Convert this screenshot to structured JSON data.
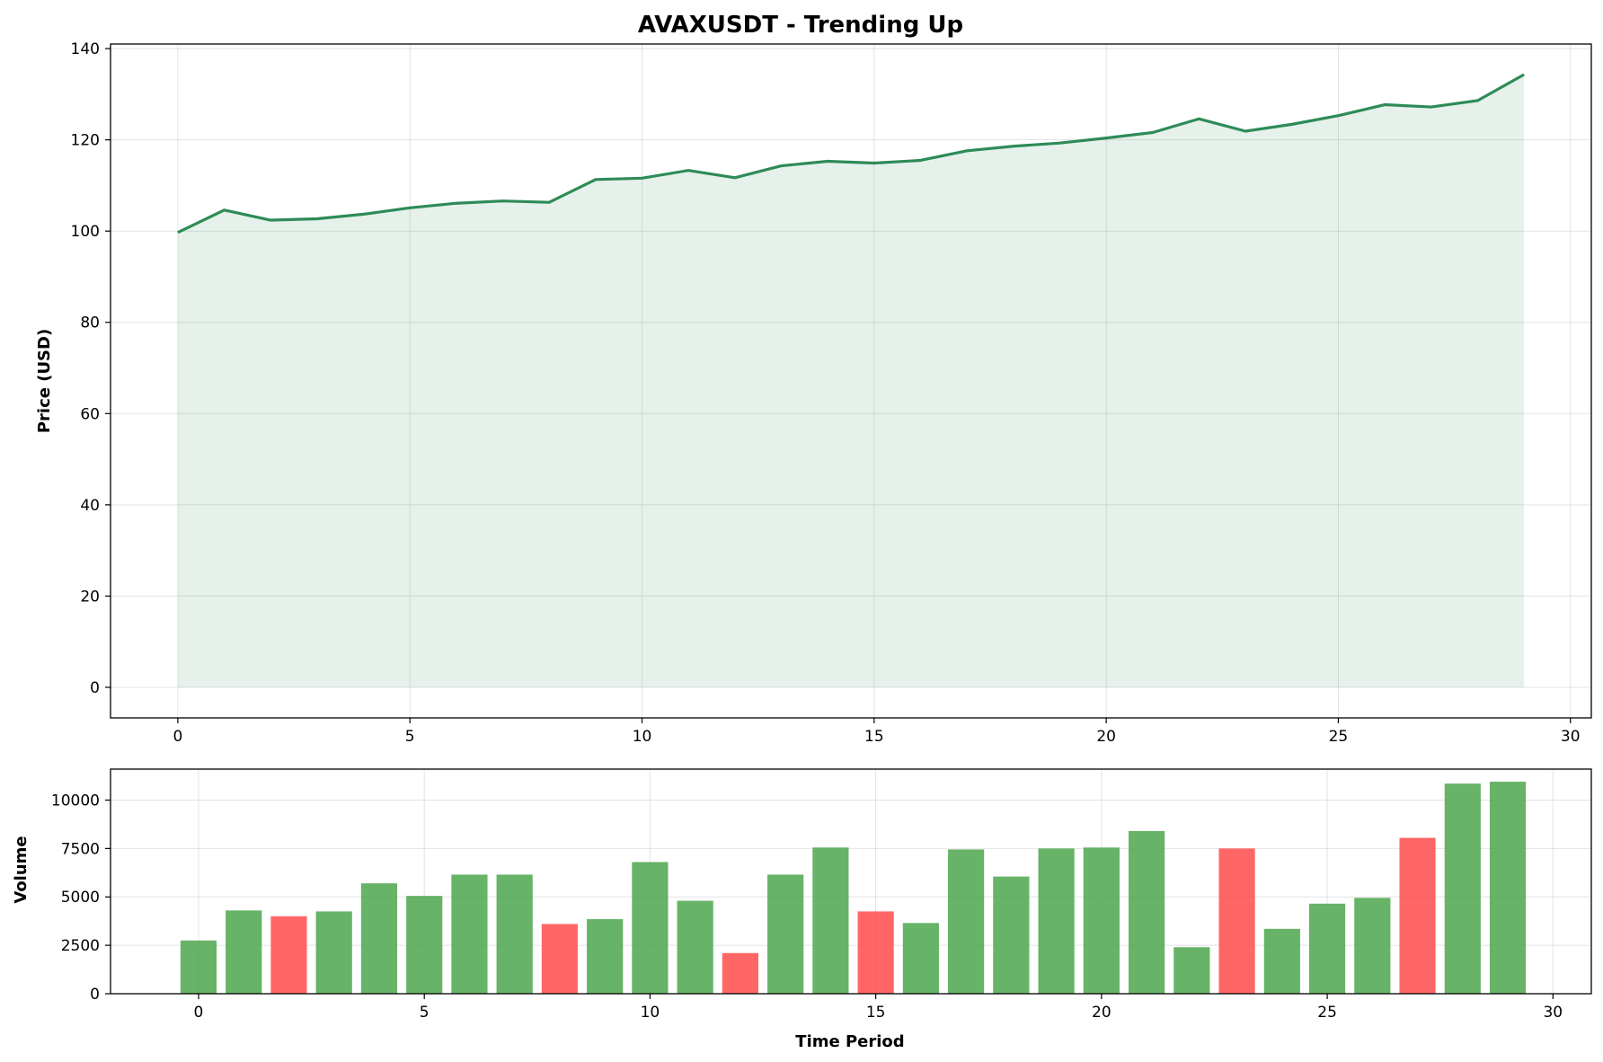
{
  "chart_data": [
    {
      "type": "line",
      "title": "AVAXUSDT - Trending Up",
      "xlabel": "",
      "ylabel": "Price (USD)",
      "xlim": [
        -1.45,
        30.45
      ],
      "ylim": [
        -6.7,
        141
      ],
      "xticks": [
        0,
        5,
        10,
        15,
        20,
        25,
        30
      ],
      "yticks": [
        0,
        20,
        40,
        60,
        80,
        100,
        120,
        140
      ],
      "grid": true,
      "fill_under": true,
      "colors": {
        "line": "#2e8b57",
        "fill": "#2e8b57"
      },
      "x": [
        0,
        1,
        2,
        3,
        4,
        5,
        6,
        7,
        8,
        9,
        10,
        11,
        12,
        13,
        14,
        15,
        16,
        17,
        18,
        19,
        20,
        21,
        22,
        23,
        24,
        25,
        26,
        27,
        28,
        29
      ],
      "series": [
        {
          "values": [
            99.7,
            104.6,
            102.4,
            102.7,
            103.7,
            105.1,
            106.1,
            106.6,
            106.3,
            111.3,
            111.6,
            113.3,
            111.7,
            114.3,
            115.3,
            114.9,
            115.5,
            117.6,
            118.6,
            119.3,
            120.4,
            121.6,
            124.6,
            121.9,
            123.4,
            125.3,
            127.7,
            127.2,
            128.6,
            134.3
          ]
        }
      ]
    },
    {
      "type": "bar",
      "title": "",
      "xlabel": "Time Period",
      "ylabel": "Volume",
      "xlim": [
        -1.95,
        30.85
      ],
      "ylim": [
        0,
        11600
      ],
      "xticks": [
        0,
        5,
        10,
        15,
        20,
        25,
        30
      ],
      "yticks": [
        0,
        2500,
        5000,
        7500,
        10000
      ],
      "grid": true,
      "colors": {
        "up": "#4ca64c",
        "down": "#ff4c4c"
      },
      "x": [
        0,
        1,
        2,
        3,
        4,
        5,
        6,
        7,
        8,
        9,
        10,
        11,
        12,
        13,
        14,
        15,
        16,
        17,
        18,
        19,
        20,
        21,
        22,
        23,
        24,
        25,
        26,
        27,
        28,
        29
      ],
      "values": [
        2750,
        4300,
        4000,
        4250,
        5700,
        5050,
        6150,
        6150,
        3600,
        3850,
        6800,
        4800,
        2100,
        6150,
        7550,
        4250,
        3650,
        7450,
        6050,
        7500,
        7550,
        8400,
        2400,
        7500,
        3350,
        4650,
        4950,
        8050,
        10850,
        10950
      ],
      "direction": [
        "up",
        "up",
        "down",
        "up",
        "up",
        "up",
        "up",
        "up",
        "down",
        "up",
        "up",
        "up",
        "down",
        "up",
        "up",
        "down",
        "up",
        "up",
        "up",
        "up",
        "up",
        "up",
        "up",
        "down",
        "up",
        "up",
        "up",
        "down",
        "up",
        "up"
      ]
    }
  ]
}
